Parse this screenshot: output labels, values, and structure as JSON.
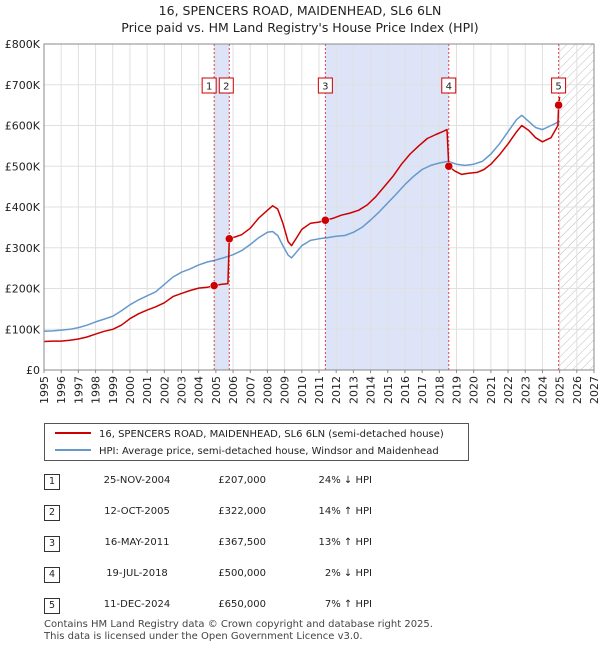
{
  "title": {
    "line1": "16, SPENCERS ROAD, MAIDENHEAD, SL6 6LN",
    "line2": "Price paid vs. HM Land Registry's House Price Index (HPI)"
  },
  "colors": {
    "price": "#cc0000",
    "hpi": "#6699cc",
    "band": "#dde4f7",
    "hatch": "#bbbbbb",
    "grid": "#e0e0e0"
  },
  "chart_data": {
    "type": "line",
    "xlim": [
      1995,
      2027
    ],
    "ylim": [
      0,
      800000
    ],
    "xticks": [
      1995,
      1996,
      1997,
      1998,
      1999,
      2000,
      2001,
      2002,
      2003,
      2004,
      2005,
      2006,
      2007,
      2008,
      2009,
      2010,
      2011,
      2012,
      2013,
      2014,
      2015,
      2016,
      2017,
      2018,
      2019,
      2020,
      2021,
      2022,
      2023,
      2024,
      2025,
      2026,
      2027
    ],
    "yticks": [
      {
        "value": 0,
        "label": "£0"
      },
      {
        "value": 100000,
        "label": "£100K"
      },
      {
        "value": 200000,
        "label": "£200K"
      },
      {
        "value": 300000,
        "label": "£300K"
      },
      {
        "value": 400000,
        "label": "£400K"
      },
      {
        "value": 500000,
        "label": "£500K"
      },
      {
        "value": 600000,
        "label": "£600K"
      },
      {
        "value": 700000,
        "label": "£700K"
      },
      {
        "value": 800000,
        "label": "£800K"
      }
    ],
    "shaded_ranges": [
      [
        2004.9,
        2005.78
      ],
      [
        2011.37,
        2018.55
      ]
    ],
    "future_start": 2025.0,
    "series": [
      {
        "name": "16, SPENCERS ROAD, MAIDENHEAD, SL6 6LN (semi-detached house)",
        "color": "#cc0000",
        "points": [
          [
            1995.0,
            70000
          ],
          [
            1995.5,
            71000
          ],
          [
            1996.0,
            71000
          ],
          [
            1996.5,
            73000
          ],
          [
            1997.0,
            76000
          ],
          [
            1997.5,
            81000
          ],
          [
            1998.0,
            88000
          ],
          [
            1998.5,
            95000
          ],
          [
            1999.0,
            100000
          ],
          [
            1999.5,
            110000
          ],
          [
            2000.0,
            126000
          ],
          [
            2000.5,
            138000
          ],
          [
            2001.0,
            147000
          ],
          [
            2001.5,
            155000
          ],
          [
            2002.0,
            165000
          ],
          [
            2002.5,
            180000
          ],
          [
            2003.0,
            188000
          ],
          [
            2003.5,
            195000
          ],
          [
            2004.0,
            201000
          ],
          [
            2004.5,
            203000
          ],
          [
            2004.9,
            207000
          ],
          [
            2005.3,
            210000
          ],
          [
            2005.7,
            212000
          ],
          [
            2005.78,
            322000
          ],
          [
            2006.0,
            325000
          ],
          [
            2006.5,
            332000
          ],
          [
            2007.0,
            348000
          ],
          [
            2007.5,
            373000
          ],
          [
            2008.0,
            392000
          ],
          [
            2008.3,
            403000
          ],
          [
            2008.6,
            395000
          ],
          [
            2008.9,
            360000
          ],
          [
            2009.2,
            315000
          ],
          [
            2009.4,
            305000
          ],
          [
            2009.7,
            325000
          ],
          [
            2010.0,
            345000
          ],
          [
            2010.5,
            360000
          ],
          [
            2011.0,
            363000
          ],
          [
            2011.37,
            367500
          ],
          [
            2011.8,
            372000
          ],
          [
            2012.3,
            380000
          ],
          [
            2012.8,
            385000
          ],
          [
            2013.3,
            392000
          ],
          [
            2013.8,
            405000
          ],
          [
            2014.3,
            425000
          ],
          [
            2014.8,
            450000
          ],
          [
            2015.3,
            475000
          ],
          [
            2015.8,
            505000
          ],
          [
            2016.3,
            530000
          ],
          [
            2016.8,
            550000
          ],
          [
            2017.3,
            568000
          ],
          [
            2017.8,
            578000
          ],
          [
            2018.2,
            585000
          ],
          [
            2018.45,
            590000
          ],
          [
            2018.55,
            500000
          ],
          [
            2018.9,
            488000
          ],
          [
            2019.3,
            480000
          ],
          [
            2019.7,
            483000
          ],
          [
            2020.2,
            485000
          ],
          [
            2020.6,
            492000
          ],
          [
            2021.0,
            505000
          ],
          [
            2021.5,
            528000
          ],
          [
            2022.0,
            555000
          ],
          [
            2022.5,
            585000
          ],
          [
            2022.8,
            600000
          ],
          [
            2023.2,
            588000
          ],
          [
            2023.6,
            570000
          ],
          [
            2024.0,
            560000
          ],
          [
            2024.5,
            570000
          ],
          [
            2024.9,
            600000
          ],
          [
            2024.94,
            650000
          ],
          [
            2025.0,
            670000
          ]
        ]
      },
      {
        "name": "HPI: Average price, semi-detached house, Windsor and Maidenhead",
        "color": "#6699cc",
        "points": [
          [
            1995.0,
            95000
          ],
          [
            1995.5,
            96000
          ],
          [
            1996.0,
            98000
          ],
          [
            1996.5,
            100000
          ],
          [
            1997.0,
            104000
          ],
          [
            1997.5,
            110000
          ],
          [
            1998.0,
            118000
          ],
          [
            1998.5,
            125000
          ],
          [
            1999.0,
            132000
          ],
          [
            1999.5,
            145000
          ],
          [
            2000.0,
            160000
          ],
          [
            2000.5,
            172000
          ],
          [
            2001.0,
            182000
          ],
          [
            2001.5,
            192000
          ],
          [
            2002.0,
            210000
          ],
          [
            2002.5,
            228000
          ],
          [
            2003.0,
            240000
          ],
          [
            2003.5,
            248000
          ],
          [
            2004.0,
            258000
          ],
          [
            2004.5,
            265000
          ],
          [
            2005.0,
            270000
          ],
          [
            2005.5,
            276000
          ],
          [
            2006.0,
            283000
          ],
          [
            2006.5,
            293000
          ],
          [
            2007.0,
            308000
          ],
          [
            2007.5,
            325000
          ],
          [
            2008.0,
            338000
          ],
          [
            2008.3,
            340000
          ],
          [
            2008.6,
            330000
          ],
          [
            2008.9,
            305000
          ],
          [
            2009.2,
            282000
          ],
          [
            2009.4,
            275000
          ],
          [
            2009.7,
            290000
          ],
          [
            2010.0,
            305000
          ],
          [
            2010.5,
            318000
          ],
          [
            2011.0,
            322000
          ],
          [
            2011.5,
            325000
          ],
          [
            2012.0,
            328000
          ],
          [
            2012.5,
            330000
          ],
          [
            2013.0,
            338000
          ],
          [
            2013.5,
            350000
          ],
          [
            2014.0,
            368000
          ],
          [
            2014.5,
            388000
          ],
          [
            2015.0,
            410000
          ],
          [
            2015.5,
            432000
          ],
          [
            2016.0,
            455000
          ],
          [
            2016.5,
            475000
          ],
          [
            2017.0,
            492000
          ],
          [
            2017.5,
            502000
          ],
          [
            2018.0,
            508000
          ],
          [
            2018.5,
            512000
          ],
          [
            2019.0,
            505000
          ],
          [
            2019.5,
            502000
          ],
          [
            2020.0,
            505000
          ],
          [
            2020.5,
            512000
          ],
          [
            2021.0,
            530000
          ],
          [
            2021.5,
            555000
          ],
          [
            2022.0,
            585000
          ],
          [
            2022.5,
            615000
          ],
          [
            2022.8,
            625000
          ],
          [
            2023.2,
            610000
          ],
          [
            2023.6,
            595000
          ],
          [
            2024.0,
            590000
          ],
          [
            2024.5,
            600000
          ],
          [
            2025.0,
            610000
          ]
        ]
      }
    ],
    "sales": [
      {
        "label": "1",
        "year": 2004.9,
        "value": 207000
      },
      {
        "label": "2",
        "year": 2005.78,
        "value": 322000
      },
      {
        "label": "3",
        "year": 2011.37,
        "value": 367500
      },
      {
        "label": "4",
        "year": 2018.55,
        "value": 500000
      },
      {
        "label": "5",
        "year": 2024.94,
        "value": 650000
      }
    ]
  },
  "legend": {
    "price_label": "16, SPENCERS ROAD, MAIDENHEAD, SL6 6LN (semi-detached house)",
    "hpi_label": "HPI: Average price, semi-detached house, Windsor and Maidenhead"
  },
  "transactions": [
    {
      "num": "1",
      "date": "25-NOV-2004",
      "price": "£207,000",
      "hpi": "24% ↓ HPI"
    },
    {
      "num": "2",
      "date": "12-OCT-2005",
      "price": "£322,000",
      "hpi": "14% ↑ HPI"
    },
    {
      "num": "3",
      "date": "16-MAY-2011",
      "price": "£367,500",
      "hpi": "13% ↑ HPI"
    },
    {
      "num": "4",
      "date": "19-JUL-2018",
      "price": "£500,000",
      "hpi": "2% ↓ HPI"
    },
    {
      "num": "5",
      "date": "11-DEC-2024",
      "price": "£650,000",
      "hpi": "7% ↑ HPI"
    }
  ],
  "footer": {
    "line1": "Contains HM Land Registry data © Crown copyright and database right 2025.",
    "line2": "This data is licensed under the Open Government Licence v3.0."
  }
}
